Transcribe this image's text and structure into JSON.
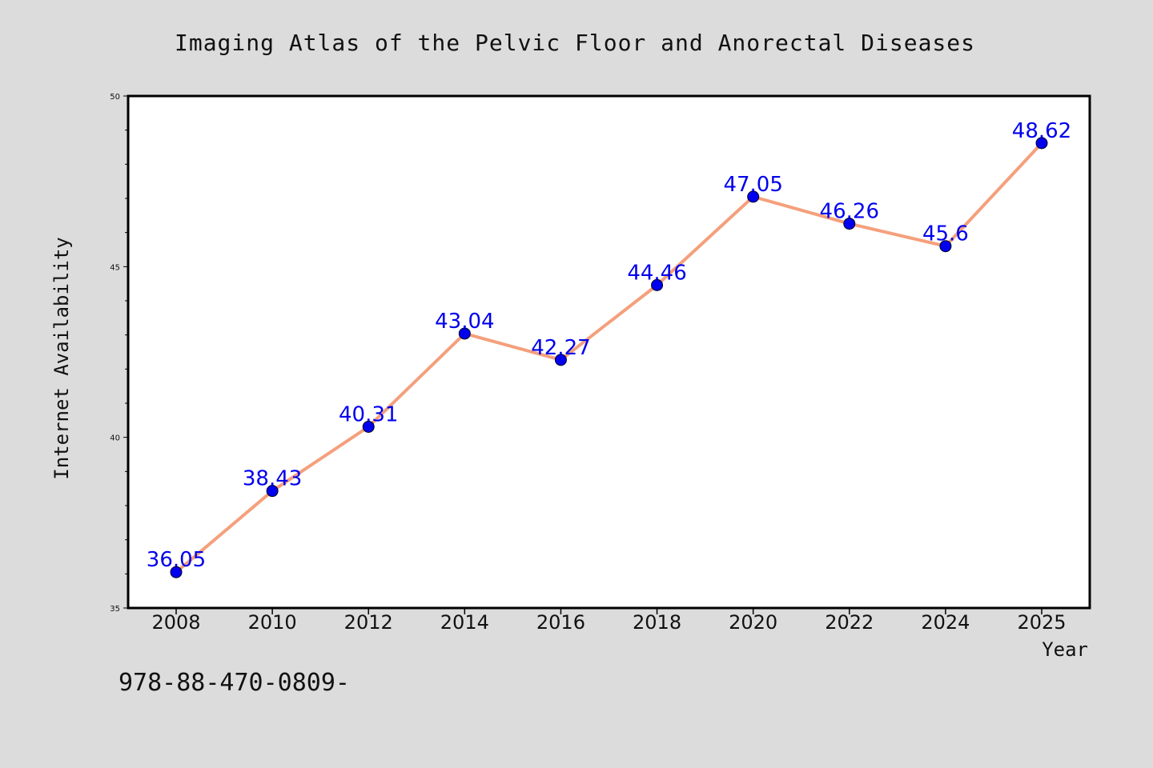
{
  "chart_data": {
    "type": "line",
    "title": "Imaging Atlas of the Pelvic Floor and Anorectal Diseases",
    "xlabel": "Year",
    "ylabel": "Internet Availability",
    "categories": [
      "2008",
      "2010",
      "2012",
      "2014",
      "2016",
      "2018",
      "2020",
      "2022",
      "2024",
      "2025"
    ],
    "series": [
      {
        "values": [
          36.05,
          38.43,
          40.31,
          43.04,
          42.27,
          44.46,
          47.05,
          46.26,
          45.6,
          48.62
        ],
        "labels": [
          "36.05",
          "38.43",
          "40.31",
          "43.04",
          "42.27",
          "44.46",
          "47.05",
          "46.26",
          "45.6",
          "48.62"
        ]
      }
    ],
    "ylim": [
      35,
      50
    ],
    "yticks": [
      "35",
      "40",
      "45",
      "50"
    ],
    "grid": false,
    "colors": {
      "line": "#f4a07c",
      "marker": "#0000ee",
      "label": "#0000ee"
    }
  },
  "footer": {
    "text": "978-88-470-0809-"
  }
}
